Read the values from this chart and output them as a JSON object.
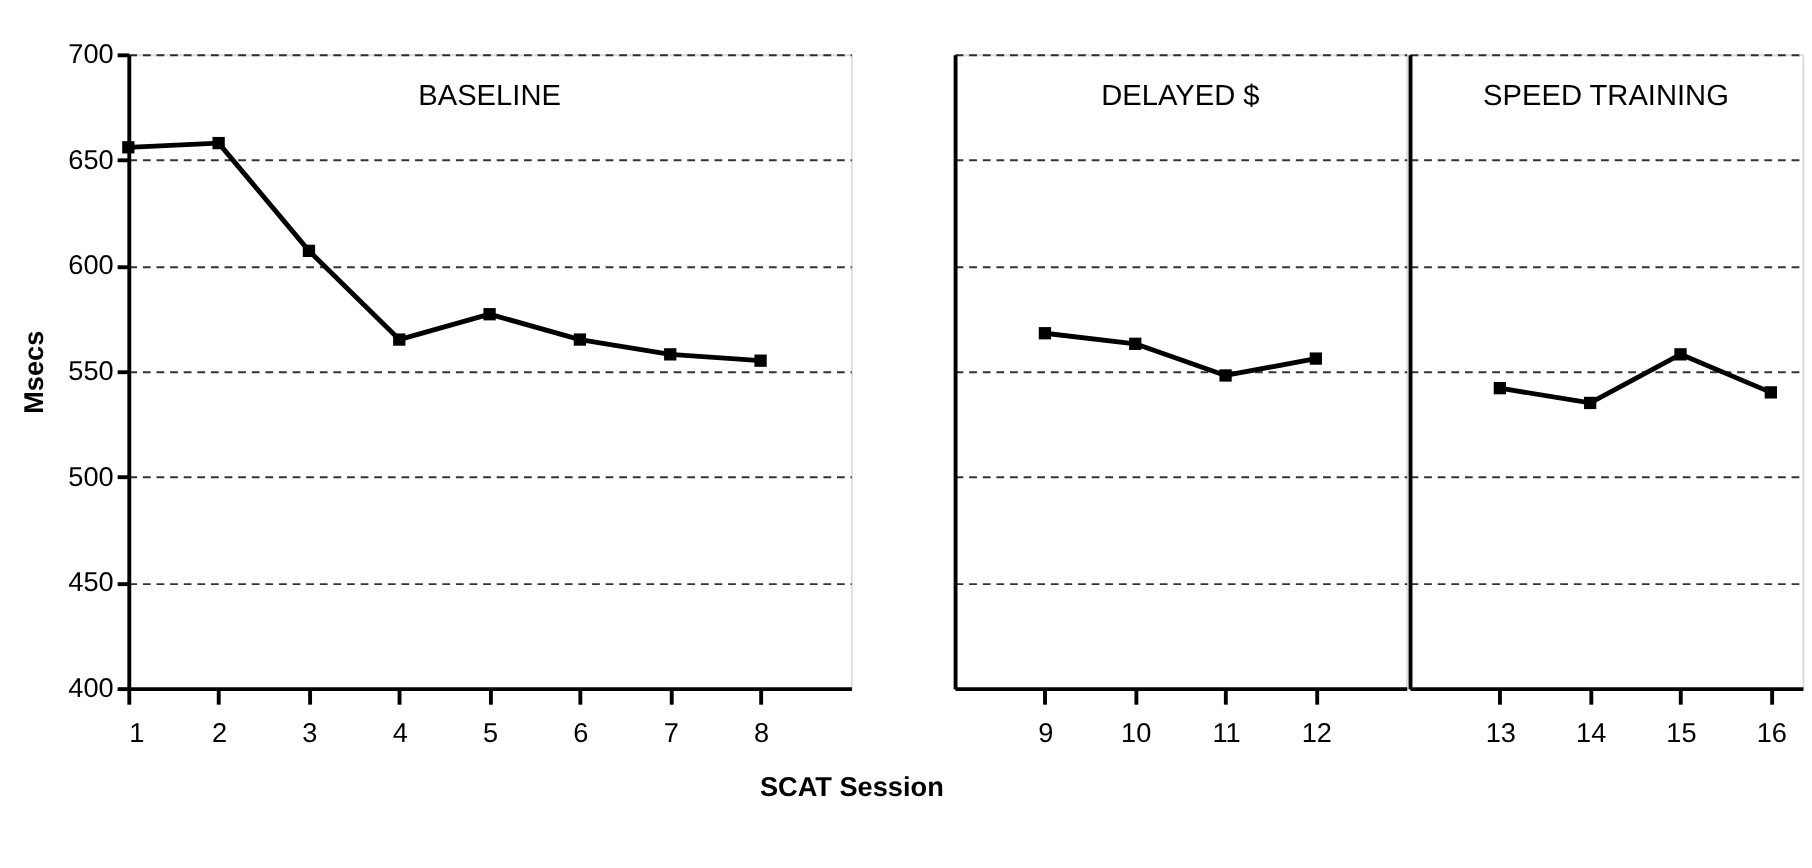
{
  "chart_data": [
    {
      "type": "line",
      "title": "BASELINE",
      "xlabel": "SCAT   Session",
      "ylabel": "Msecs",
      "series": [
        {
          "color": "#000000",
          "x": [
            1,
            2,
            3,
            4,
            5,
            6,
            7,
            8
          ],
          "values": [
            656,
            658,
            607,
            565,
            577,
            565,
            558,
            555
          ]
        }
      ],
      "xlim": [
        1,
        9
      ],
      "xticks": [
        1,
        2,
        3,
        4,
        5,
        6,
        7,
        8
      ],
      "ylim": [
        400,
        700
      ],
      "yticks": [
        400,
        450,
        500,
        550,
        600,
        650,
        700
      ],
      "grid": "y",
      "marker": "square",
      "line_style": "solid"
    },
    {
      "type": "line",
      "title": "DELAYED $",
      "series": [
        {
          "color": "#000000",
          "x": [
            9,
            10,
            11,
            12
          ],
          "values": [
            568,
            563,
            548,
            556
          ]
        }
      ],
      "xlim": [
        8,
        13
      ],
      "xticks": [
        9,
        10,
        11,
        12
      ],
      "ylim": [
        400,
        700
      ],
      "yticks": [
        400,
        450,
        500,
        550,
        600,
        650,
        700
      ],
      "tick_labels": "x",
      "grid": "y",
      "marker": "square",
      "line_style": "solid"
    },
    {
      "type": "line",
      "title": "SPEED TRAINING",
      "series": [
        {
          "color": "#000000",
          "x": [
            13,
            14,
            15,
            16
          ],
          "values": [
            542,
            535,
            558,
            540
          ]
        }
      ],
      "xlim": [
        12,
        16.35
      ],
      "xticks": [
        13,
        14,
        15,
        16
      ],
      "ylim": [
        400,
        700
      ],
      "yticks": [
        400,
        450,
        500,
        550,
        600,
        650,
        700
      ],
      "tick_labels": "x",
      "grid": "y",
      "marker": "square",
      "line_style": "solid"
    }
  ]
}
